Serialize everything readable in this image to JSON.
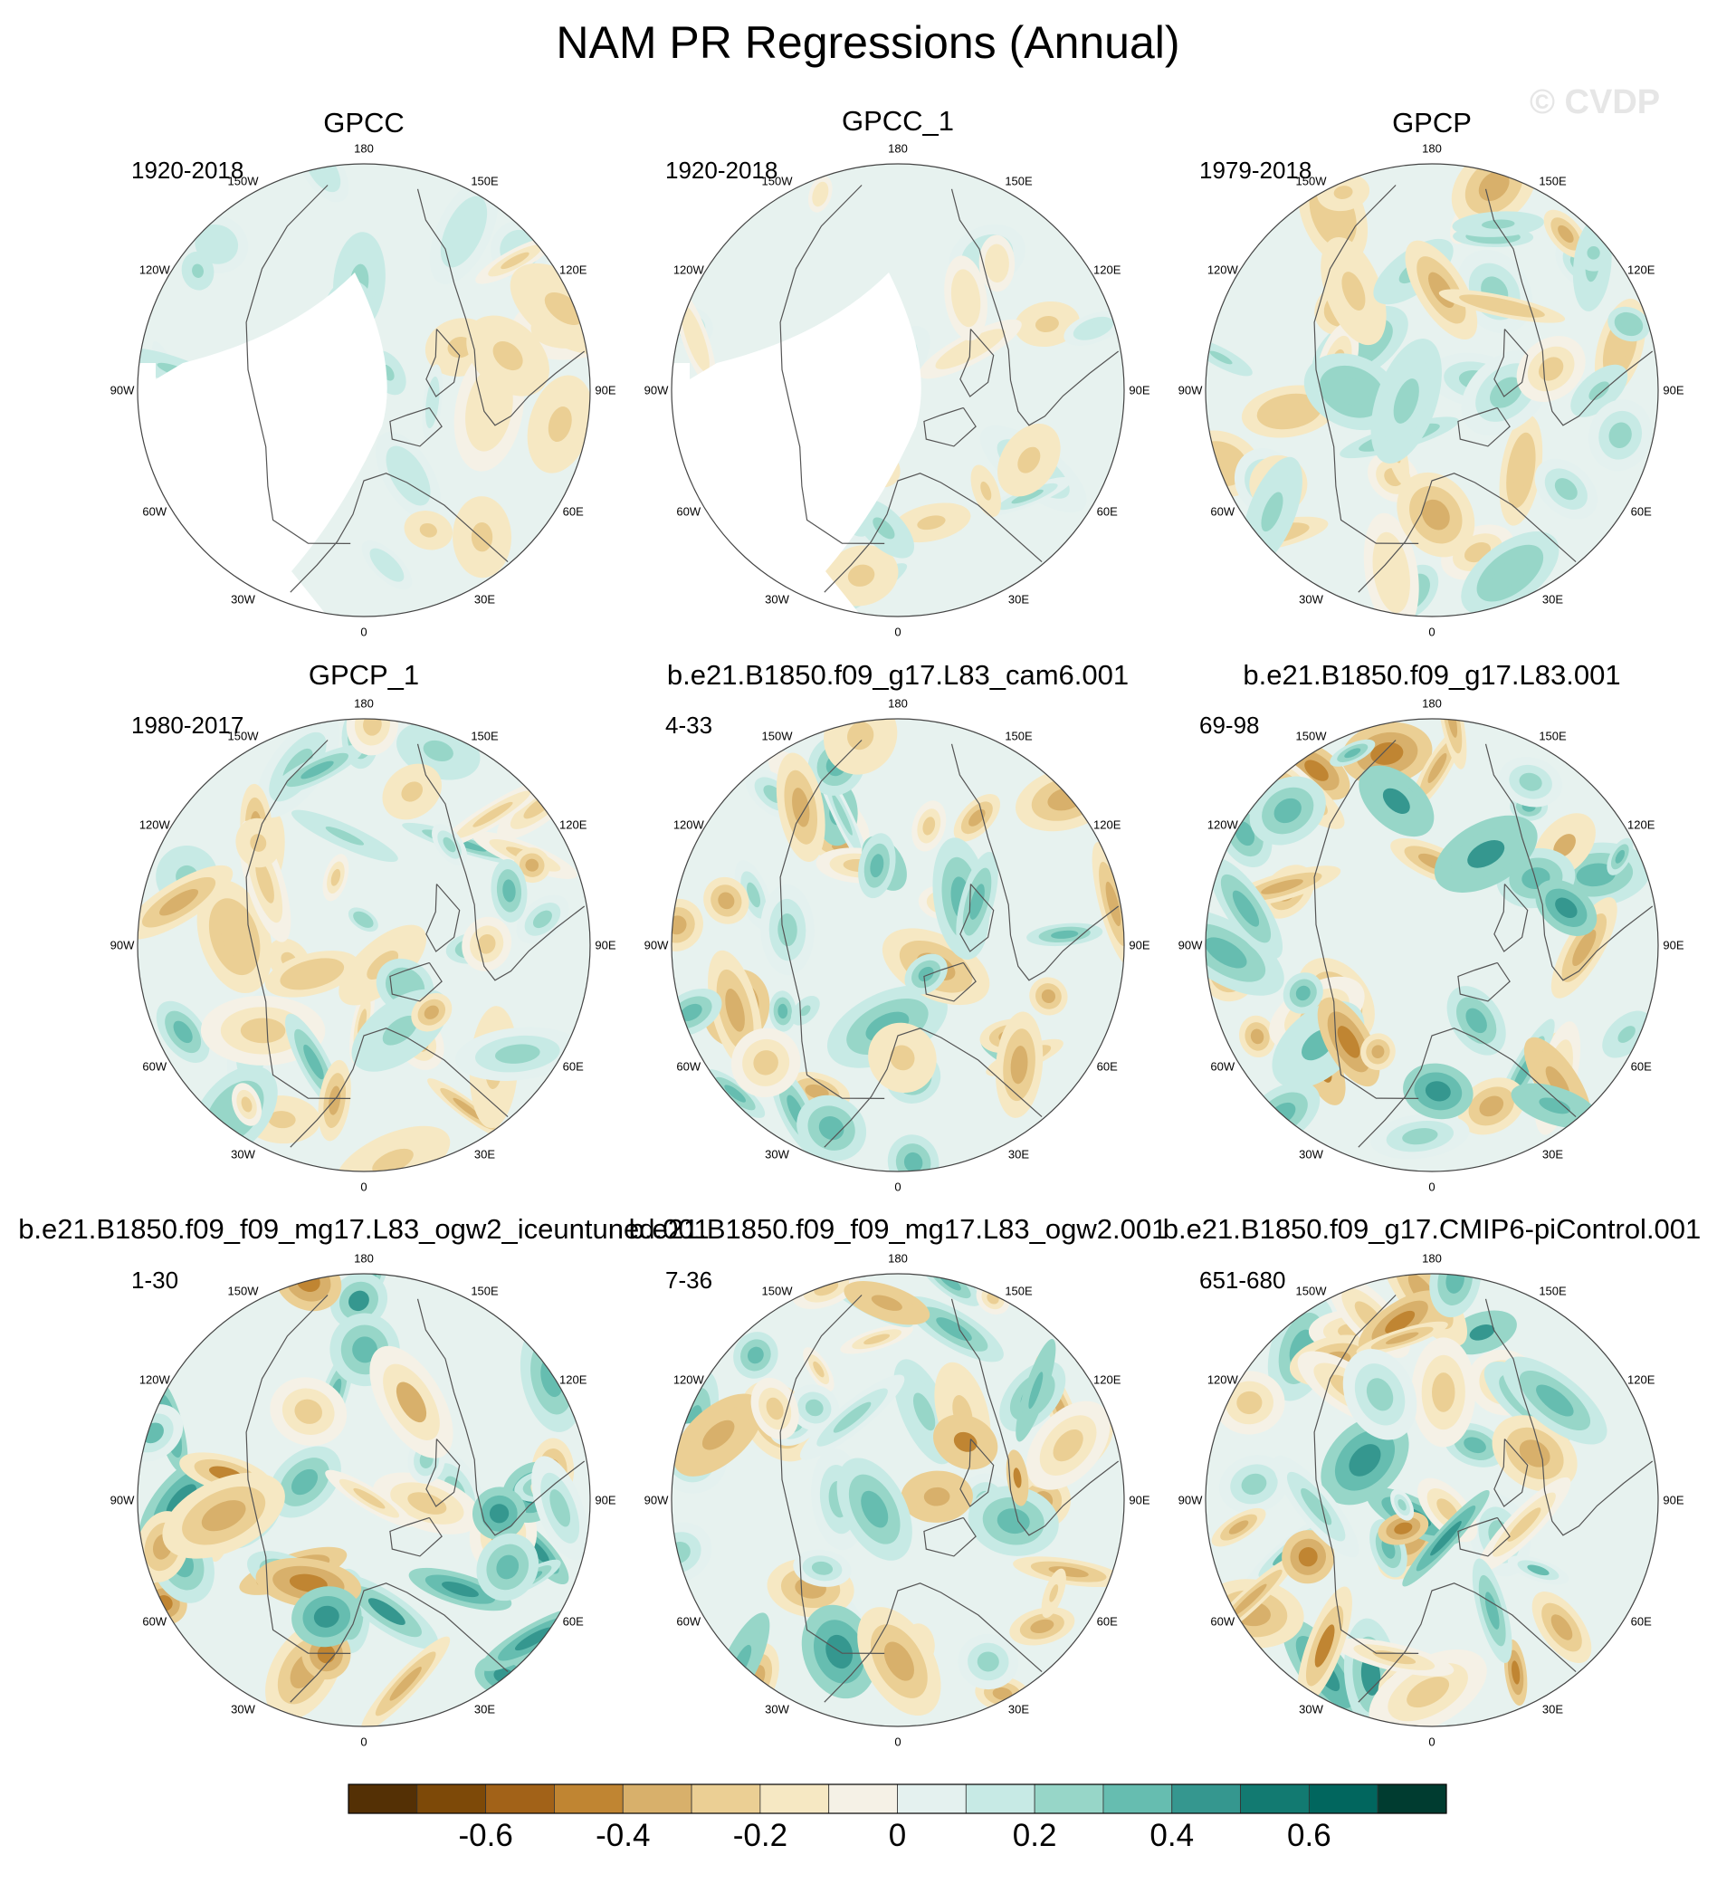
{
  "figure": {
    "title": "NAM PR Regressions (Annual)",
    "watermark": "© CVDP",
    "colors": {
      "background": "#ffffff",
      "land_outline": "#555555",
      "circle_border": "#444444",
      "missing": "#ffffff"
    },
    "longitude_labels": [
      "180",
      "150E",
      "120E",
      "90E",
      "60E",
      "30E",
      "0",
      "30W",
      "60W",
      "90W",
      "120W",
      "150W"
    ]
  },
  "panels": [
    {
      "title": "GPCC",
      "period": "1920-2018",
      "style": "obs_land",
      "amp": 0.5
    },
    {
      "title": "GPCC_1",
      "period": "1920-2018",
      "style": "obs_land",
      "amp": 0.5
    },
    {
      "title": "GPCP",
      "period": "1979-2018",
      "style": "global",
      "amp": 0.65
    },
    {
      "title": "GPCP_1",
      "period": "1980-2017",
      "style": "global",
      "amp": 0.7
    },
    {
      "title": "b.e21.B1850.f09_g17.L83_cam6.001",
      "period": "4-33",
      "style": "global",
      "amp": 0.85
    },
    {
      "title": "b.e21.B1850.f09_g17.L83.001",
      "period": "69-98",
      "style": "global",
      "amp": 0.9
    },
    {
      "title": "b.e21.B1850.f09_f09_mg17.L83_ogw2_iceuntuned.001",
      "period": "1-30",
      "style": "global",
      "amp": 1.0
    },
    {
      "title": "b.e21.B1850.f09_f09_mg17.L83_ogw2.001",
      "period": "7-36",
      "style": "global",
      "amp": 0.85
    },
    {
      "title": "b.e21.B1850.f09_g17.CMIP6-piControl.001",
      "period": "651-680",
      "style": "global",
      "amp": 0.95
    }
  ],
  "colorbar": {
    "boundaries": [
      -0.8,
      -0.7,
      -0.6,
      -0.5,
      -0.4,
      -0.3,
      -0.2,
      -0.1,
      0,
      0.1,
      0.2,
      0.3,
      0.4,
      0.5,
      0.6,
      0.7,
      0.8
    ],
    "colors": [
      "#543005",
      "#7d4908",
      "#a26218",
      "#c08532",
      "#d8b06b",
      "#ebcf94",
      "#f6e8c3",
      "#f5f1e6",
      "#e4f1ef",
      "#c7eae5",
      "#97d6c8",
      "#66bdb0",
      "#35978f",
      "#127a71",
      "#01665e",
      "#003c30"
    ],
    "tick_labels": [
      "-0.6",
      "-0.4",
      "-0.2",
      "0",
      "0.2",
      "0.4",
      "0.6"
    ],
    "tick_values": [
      -0.6,
      -0.4,
      -0.2,
      0,
      0.2,
      0.4,
      0.6
    ]
  }
}
